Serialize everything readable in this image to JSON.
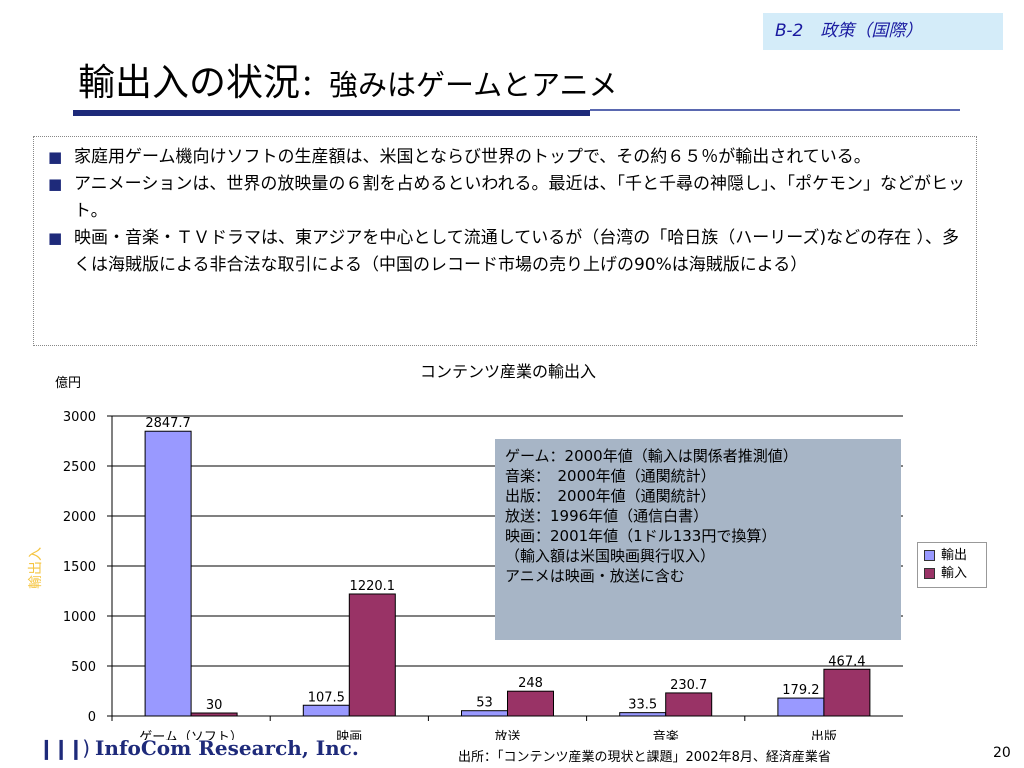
{
  "tag": "B-2　政策（国際）",
  "title": {
    "main": "輸出入の状況",
    "sub": "：強みはゲームとアニメ"
  },
  "bullets": [
    "家庭用ゲーム機向けソフトの生産額は、米国とならび世界のトップで、その約６５％が輸出されている。",
    "アニメーションは、世界の放映量の６割を占めるといわれる。最近は、「千と千尋の神隠し」、「ポケモン」などがヒット。",
    "映画・音楽・ＴＶドラマは、東アジアを中心として流通しているが（台湾の「哈日族（ハーリーズ)などの存在 ）、多くは海賊版による非合法な取引による（中国のレコード市場の売り上げの90%は海賊版による）"
  ],
  "bullet_mark": "■",
  "notes": [
    "ゲーム：2000年値（輸入は関係者推測値）",
    "音楽：　2000年値（通関統計）",
    "出版：　2000年値（通関統計）",
    "放送：1996年値（通信白書）",
    "映画：2001年値（1ドル133円で換算）",
    "（輸入額は米国映画興行収入）",
    "アニメは映画・放送に含む"
  ],
  "footer": {
    "logo": "InfoCom Research, Inc.",
    "source": "出所：「コンテンツ産業の現状と課題」2002年8月、経済産業省",
    "page": "20"
  },
  "chart_data": {
    "type": "bar",
    "title": "コンテンツ産業の輸出入",
    "unit_label": "億円",
    "rotated_ylabel": "輸出入",
    "categories": [
      "ゲーム（ソフト）",
      "映画",
      "放送",
      "音楽",
      "出版"
    ],
    "series": [
      {
        "name": "輸出",
        "values": [
          2847.7,
          107.5,
          53,
          33.5,
          179.2
        ],
        "labels": [
          "2847.7",
          "107.5",
          "53",
          "33.5",
          "179.2"
        ],
        "color": "#9999ff"
      },
      {
        "name": "輸入",
        "values": [
          30,
          1220.1,
          248,
          230.7,
          467.4
        ],
        "labels": [
          "30",
          "1220.1",
          "248",
          "230.7",
          "467.4"
        ],
        "color": "#993366"
      }
    ],
    "yticks": [
      "0",
      "500",
      "1000",
      "1500",
      "2000",
      "2500",
      "3000"
    ],
    "ylim": [
      0,
      3000
    ],
    "grid": true,
    "legend_position": "right"
  }
}
